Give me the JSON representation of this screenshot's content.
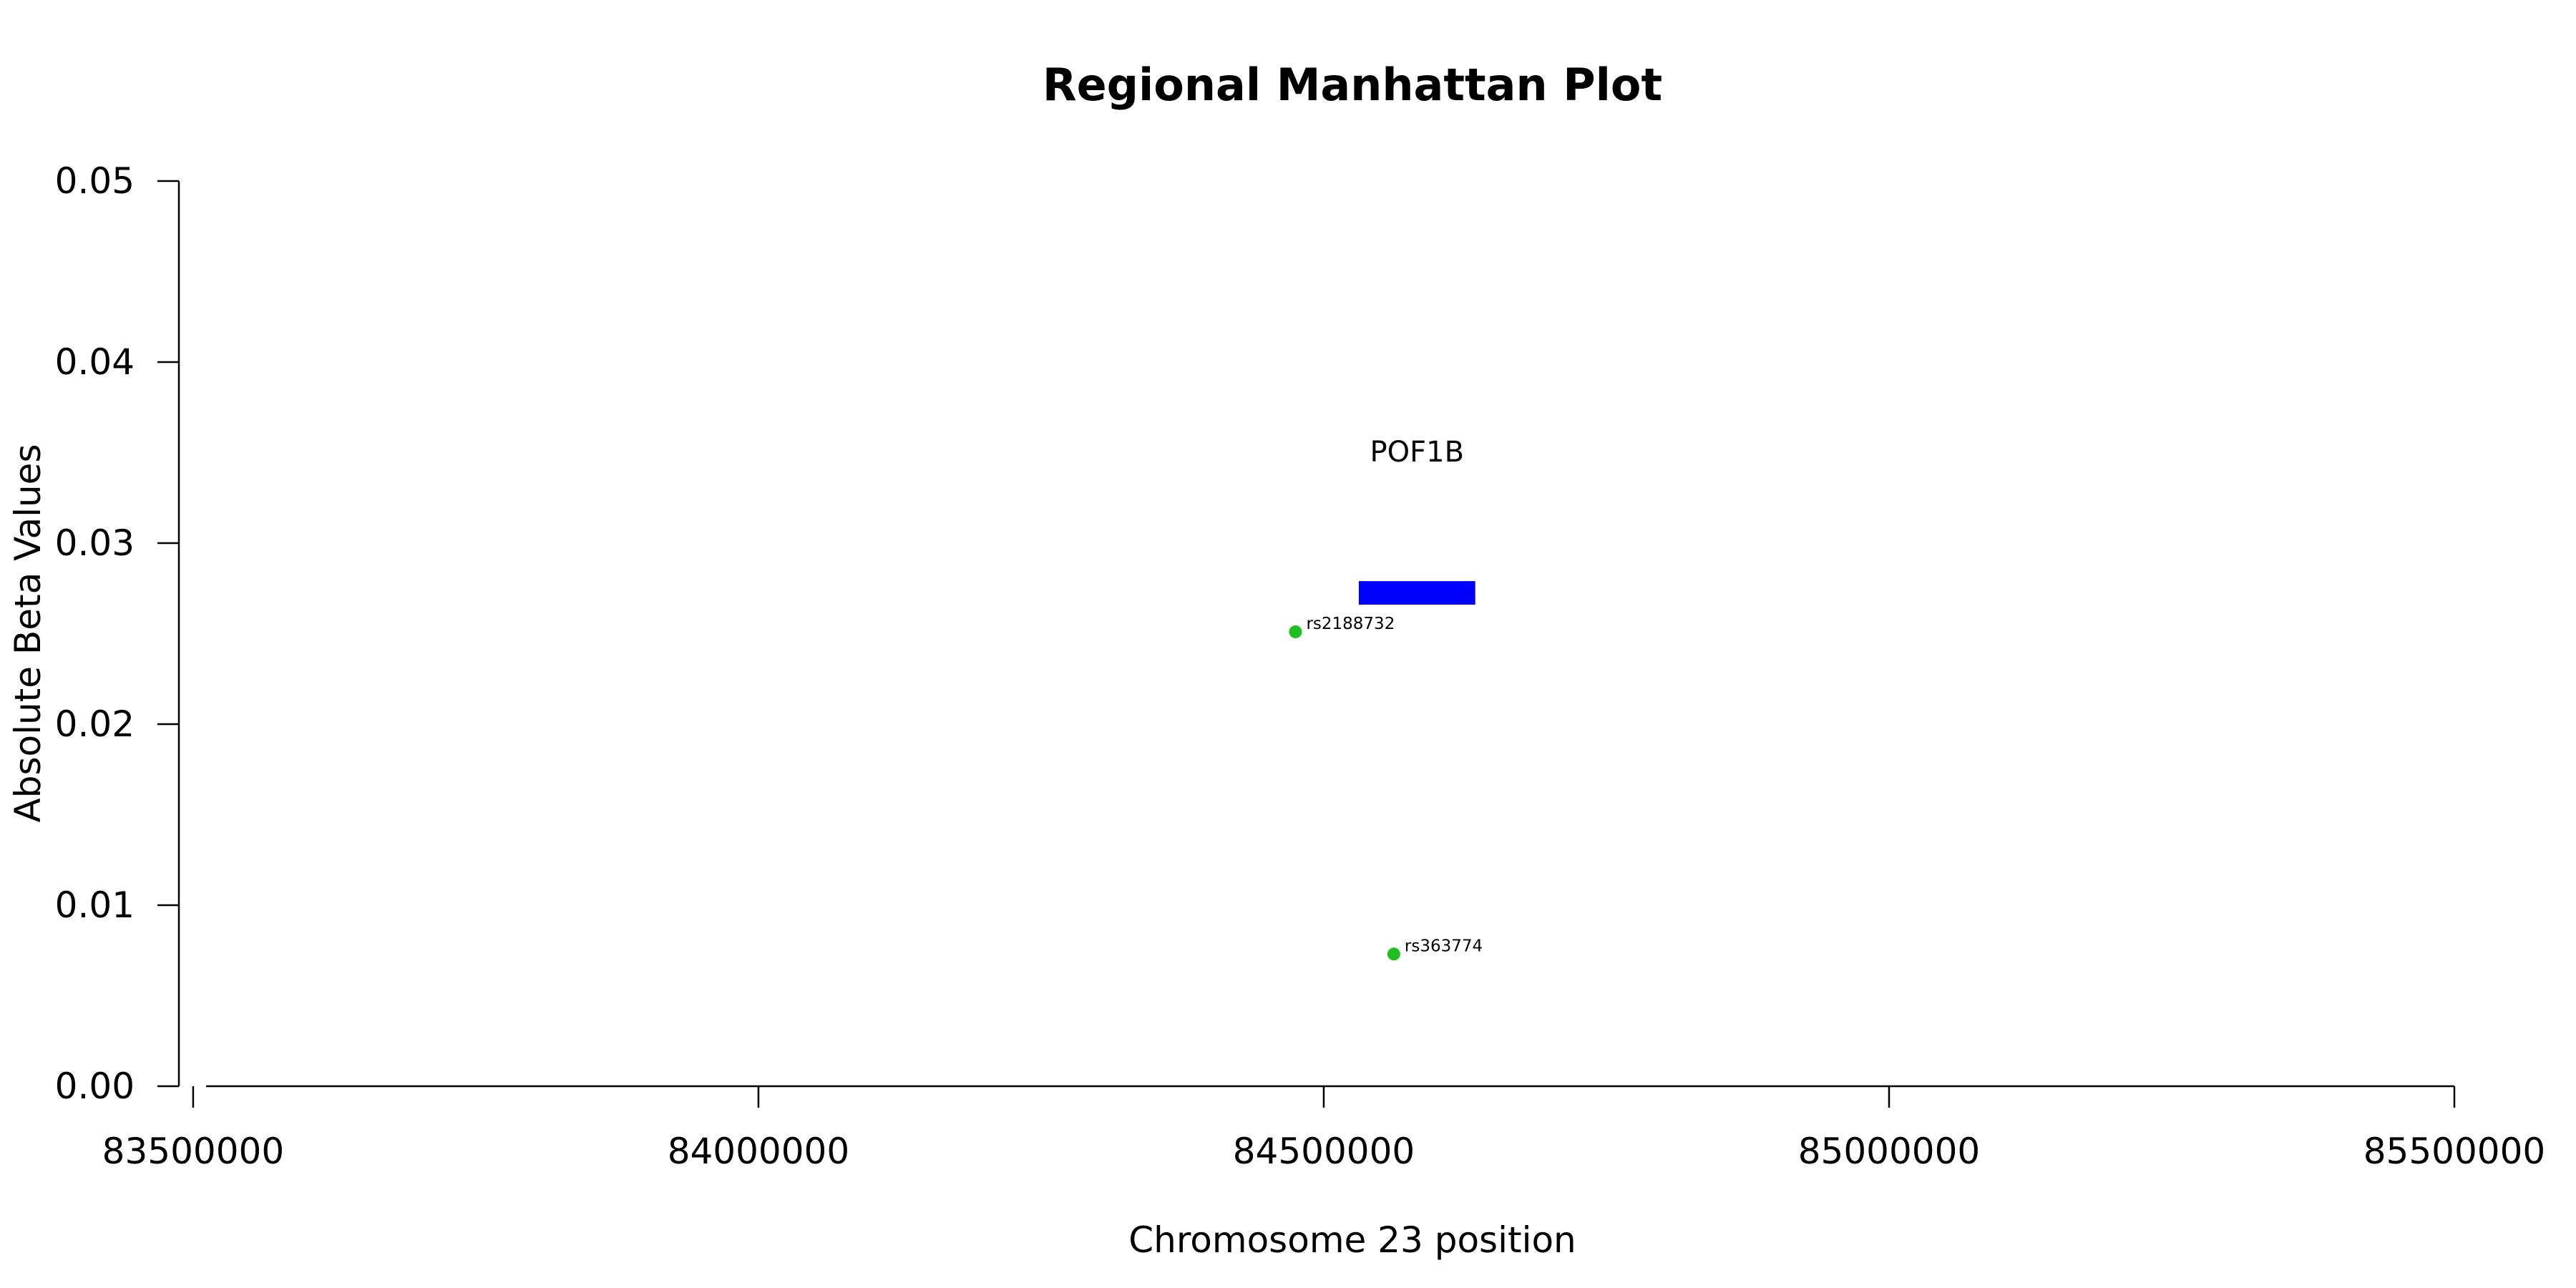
{
  "chart_data": {
    "type": "scatter",
    "title": "Regional Manhattan Plot",
    "xlabel": "Chromosome 23 position",
    "ylabel": "Absolute Beta Values",
    "xlim": [
      83476000,
      85500000
    ],
    "ylim": [
      0,
      0.05
    ],
    "x_ticks": [
      83500000,
      84000000,
      84500000,
      85000000,
      85500000
    ],
    "x_tick_labels": [
      "83500000",
      "84000000",
      "84500000",
      "85000000",
      "85500000"
    ],
    "y_ticks": [
      0,
      0.01,
      0.02,
      0.03,
      0.04,
      0.05
    ],
    "y_tick_labels": [
      "0.00",
      "0.01",
      "0.02",
      "0.03",
      "0.04",
      "0.05"
    ],
    "grid": false,
    "points": [
      {
        "label": "rs2188732",
        "x": 84475000,
        "y": 0.0251,
        "color": "#1fbf1f"
      },
      {
        "label": "rs363774",
        "x": 84562000,
        "y": 0.0073,
        "color": "#1fbf1f"
      }
    ],
    "genes": [
      {
        "name": "POF1B",
        "start": 84531000,
        "end": 84634000,
        "y_low": 0.0266,
        "y_high": 0.0279,
        "label_y": 0.0345,
        "color": "#0000ff"
      }
    ]
  }
}
